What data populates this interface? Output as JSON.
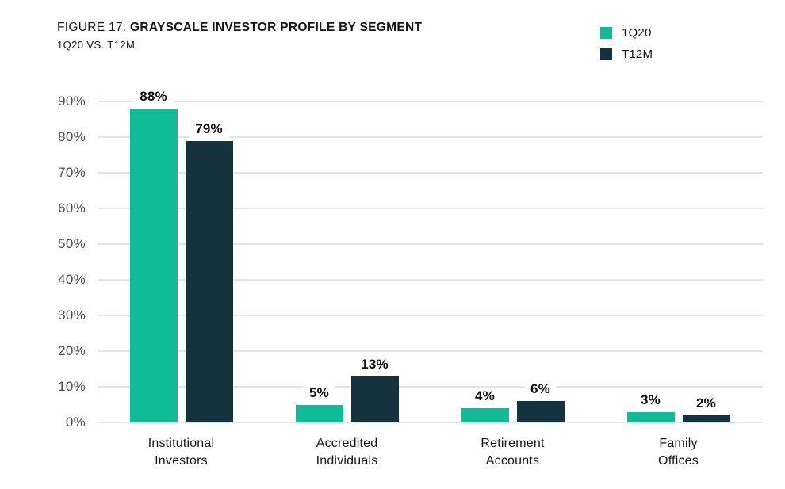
{
  "header": {
    "figure_label": "FIGURE 17:",
    "title": "GRAYSCALE INVESTOR PROFILE BY SEGMENT",
    "subtitle": "1Q20 VS. T12M"
  },
  "legend": {
    "items": [
      {
        "label": "1Q20",
        "color": "#10bc97"
      },
      {
        "label": "T12M",
        "color": "#14333e"
      }
    ]
  },
  "chart_data": {
    "type": "bar",
    "title": "FIGURE 17: GRAYSCALE INVESTOR PROFILE BY SEGMENT",
    "subtitle": "1Q20 VS. T12M",
    "categories": [
      "Institutional Investors",
      "Accredited Individuals",
      "Retirement Accounts",
      "Family Offices"
    ],
    "series": [
      {
        "name": "1Q20",
        "color": "#10bc97",
        "values": [
          88,
          5,
          4,
          3
        ]
      },
      {
        "name": "T12M",
        "color": "#14333e",
        "values": [
          79,
          13,
          6,
          2
        ]
      }
    ],
    "data_labels": [
      "88%",
      "79%",
      "5%",
      "13%",
      "4%",
      "6%",
      "3%",
      "2%"
    ],
    "ylabel": "",
    "xlabel": "",
    "yticks": [
      "0%",
      "10%",
      "20%",
      "30%",
      "40%",
      "50%",
      "60%",
      "70%",
      "80%",
      "90%"
    ],
    "ylim": [
      0,
      90
    ],
    "grid": true,
    "gridline_color": "#e4e4e4",
    "legend_position": "top-right",
    "value_format": "percent"
  }
}
